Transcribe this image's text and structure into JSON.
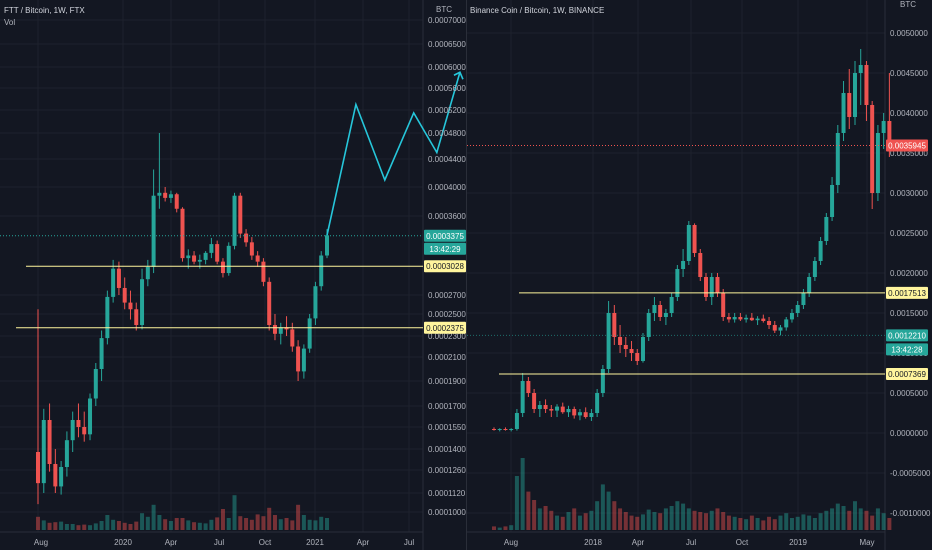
{
  "chart_data": [
    {
      "type": "candlestick",
      "title": "FTT / Bitcoin, 1W, FTX",
      "volume_label": "Vol",
      "currency": "BTC",
      "y_ticks": [
        0.0001,
        0.000112,
        0.000126,
        0.00014,
        0.000155,
        0.00017,
        0.00019,
        0.00021,
        0.00023,
        0.00025,
        0.00027,
        0.00036,
        0.0004,
        0.00044,
        0.00048,
        0.00052,
        0.00056,
        0.0006,
        0.00065,
        0.0007
      ],
      "y_tick_labels": [
        "0.0001000",
        "0.0001120",
        "0.0001260",
        "0.0001400",
        "0.0001550",
        "0.0001700",
        "0.0001900",
        "0.0002100",
        "0.0002300",
        "0.0002500",
        "0.0002700",
        "0.0003600",
        "0.0004000",
        "0.0004400",
        "0.0004800",
        "0.0005200",
        "0.0005600",
        "0.0006000",
        "0.0006500",
        "0.0007000"
      ],
      "x_labels": [
        "Aug",
        "2020",
        "Apr",
        "Jul",
        "Oct",
        "2021",
        "Apr",
        "Jul"
      ],
      "last_price": "0.0003375",
      "countdown": "13:42:29",
      "horizontal_levels": [
        "0.0003028",
        "0.0002375"
      ],
      "candles": [
        [
          0.000138,
          0.000255,
          0.000105,
          0.000118
        ],
        [
          0.000118,
          0.000168,
          0.000112,
          0.00016
        ],
        [
          0.00016,
          0.000172,
          0.000125,
          0.00013
        ],
        [
          0.00013,
          0.00014,
          0.000112,
          0.000116
        ],
        [
          0.000116,
          0.000132,
          0.000111,
          0.000128
        ],
        [
          0.000128,
          0.000152,
          0.000122,
          0.000146
        ],
        [
          0.000146,
          0.000166,
          0.000138,
          0.00016
        ],
        [
          0.00016,
          0.000172,
          0.000148,
          0.000155
        ],
        [
          0.000155,
          0.000166,
          0.000145,
          0.00015
        ],
        [
          0.00015,
          0.00018,
          0.000146,
          0.000176
        ],
        [
          0.000176,
          0.000205,
          0.00017,
          0.0002
        ],
        [
          0.0002,
          0.000235,
          0.00019,
          0.000228
        ],
        [
          0.000228,
          0.000275,
          0.000222,
          0.000268
        ],
        [
          0.000268,
          0.00031,
          0.000262,
          0.0003
        ],
        [
          0.0003,
          0.000308,
          0.00027,
          0.000278
        ],
        [
          0.000278,
          0.00029,
          0.000255,
          0.000262
        ],
        [
          0.000262,
          0.000275,
          0.000245,
          0.000255
        ],
        [
          0.000255,
          0.000262,
          0.000235,
          0.00024
        ],
        [
          0.00024,
          0.0003,
          0.000236,
          0.000288
        ],
        [
          0.000288,
          0.00031,
          0.00028,
          0.000302
        ],
        [
          0.000302,
          0.000425,
          0.000295,
          0.000388
        ],
        [
          0.000388,
          0.00048,
          0.00037,
          0.000392
        ],
        [
          0.000392,
          0.0004,
          0.00038,
          0.000385
        ],
        [
          0.000385,
          0.000395,
          0.000378,
          0.00039
        ],
        [
          0.00039,
          0.000392,
          0.000365,
          0.00037
        ],
        [
          0.00037,
          0.000372,
          0.000308,
          0.000312
        ],
        [
          0.000312,
          0.000322,
          0.0003,
          0.000315
        ],
        [
          0.000315,
          0.00032,
          0.000305,
          0.000308
        ],
        [
          0.000308,
          0.000316,
          0.0003,
          0.00031
        ],
        [
          0.00031,
          0.00032,
          0.000305,
          0.000318
        ],
        [
          0.000318,
          0.000335,
          0.000312,
          0.000328
        ],
        [
          0.000328,
          0.000332,
          0.000305,
          0.000308
        ],
        [
          0.000308,
          0.000312,
          0.00029,
          0.000295
        ],
        [
          0.000295,
          0.00033,
          0.000292,
          0.000326
        ],
        [
          0.000326,
          0.000392,
          0.000322,
          0.000388
        ],
        [
          0.000388,
          0.000392,
          0.000335,
          0.00034
        ],
        [
          0.00034,
          0.000345,
          0.000325,
          0.00033
        ],
        [
          0.00033,
          0.000336,
          0.00031,
          0.000315
        ],
        [
          0.000315,
          0.00032,
          0.000302,
          0.000308
        ],
        [
          0.000308,
          0.000312,
          0.00028,
          0.000285
        ],
        [
          0.000285,
          0.00029,
          0.000235,
          0.00024
        ],
        [
          0.00024,
          0.00025,
          0.000226,
          0.000232
        ],
        [
          0.000232,
          0.000242,
          0.000222,
          0.000238
        ],
        [
          0.000238,
          0.000248,
          0.00023,
          0.000236
        ],
        [
          0.000236,
          0.000242,
          0.000215,
          0.00022
        ],
        [
          0.00022,
          0.000226,
          0.00019,
          0.000198
        ],
        [
          0.000198,
          0.000222,
          0.000192,
          0.000218
        ],
        [
          0.000218,
          0.00025,
          0.000214,
          0.000246
        ],
        [
          0.000246,
          0.000285,
          0.00024,
          0.00028
        ],
        [
          0.00028,
          0.00032,
          0.000275,
          0.000315
        ],
        [
          0.000315,
          0.000345,
          0.000312,
          0.000338
        ]
      ],
      "volumes": [
        2.2,
        1.6,
        1.2,
        1.3,
        1.4,
        1.0,
        1.0,
        0.8,
        0.9,
        0.8,
        1.1,
        1.5,
        2.5,
        1.7,
        1.5,
        1.2,
        1.0,
        1.4,
        2.8,
        2.2,
        4.2,
        2.5,
        1.8,
        1.5,
        2.0,
        2.0,
        1.6,
        1.3,
        1.2,
        1.1,
        1.7,
        2.1,
        3.5,
        2.0,
        5.8,
        2.3,
        2.0,
        1.7,
        2.6,
        2.3,
        3.7,
        2.5,
        1.8,
        2.0,
        1.6,
        4.2,
        2.5,
        1.7,
        1.6,
        2.2,
        2.0
      ],
      "projection": [
        [
          50,
          0.000338
        ],
        [
          55,
          0.00053
        ],
        [
          60,
          0.00041
        ],
        [
          65,
          0.000515
        ],
        [
          69,
          0.00045
        ],
        [
          73,
          0.00059
        ]
      ]
    },
    {
      "type": "candlestick",
      "title": "Binance Coin / Bitcoin, 1W, BINANCE",
      "currency": "BTC",
      "y_ticks": [
        -0.001,
        -0.0005,
        0,
        0.0005,
        0.001,
        0.0015,
        0.002,
        0.0025,
        0.003,
        0.0035,
        0.004,
        0.0045,
        0.005
      ],
      "y_tick_labels": [
        "-0.0010000",
        "-0.0005000",
        "0.0000000",
        "0.0005000",
        "0.0010000",
        "0.0015000",
        "0.0020000",
        "0.0025000",
        "0.0030000",
        "0.0035000",
        "0.0040000",
        "0.0045000",
        "0.0050000"
      ],
      "x_labels": [
        "Aug",
        "2018",
        "Apr",
        "Jul",
        "Oct",
        "2019",
        "May"
      ],
      "last_price": "0.0035945",
      "sub_price": "0.0012210",
      "countdown": "13:42:28",
      "horizontal_levels": [
        "0.0017513",
        "0.0007369"
      ],
      "candles": [
        [
          5e-05,
          7e-05,
          3e-05,
          4e-05
        ],
        [
          4e-05,
          6e-05,
          2e-05,
          5e-05
        ],
        [
          5e-05,
          7e-05,
          3e-05,
          4e-05
        ],
        [
          4e-05,
          6e-05,
          2e-05,
          5e-05
        ],
        [
          5e-05,
          0.0003,
          3e-05,
          0.00025
        ],
        [
          0.00025,
          0.00075,
          0.0002,
          0.00065
        ],
        [
          0.00065,
          0.0007,
          0.00045,
          0.0005
        ],
        [
          0.0005,
          0.00055,
          0.00025,
          0.0003
        ],
        [
          0.0003,
          0.0004,
          0.0002,
          0.00035
        ],
        [
          0.00035,
          0.00042,
          0.00025,
          0.0003
        ],
        [
          0.0003,
          0.00035,
          0.0002,
          0.00028
        ],
        [
          0.00028,
          0.00036,
          0.0002,
          0.00033
        ],
        [
          0.00033,
          0.00038,
          0.00024,
          0.00026
        ],
        [
          0.00026,
          0.00034,
          0.0002,
          0.0003
        ],
        [
          0.0003,
          0.00033,
          0.00018,
          0.00022
        ],
        [
          0.00022,
          0.0003,
          0.00016,
          0.00026
        ],
        [
          0.00026,
          0.00032,
          0.00018,
          0.0002
        ],
        [
          0.0002,
          0.0003,
          0.00015,
          0.00025
        ],
        [
          0.00025,
          0.00055,
          0.0002,
          0.0005
        ],
        [
          0.0005,
          0.00085,
          0.00045,
          0.0008
        ],
        [
          0.0008,
          0.00165,
          0.00075,
          0.0015
        ],
        [
          0.0015,
          0.0016,
          0.0011,
          0.0012
        ],
        [
          0.0012,
          0.00135,
          0.001,
          0.0011
        ],
        [
          0.0011,
          0.0012,
          0.00095,
          0.00105
        ],
        [
          0.00105,
          0.00115,
          0.0009,
          0.001
        ],
        [
          0.001,
          0.00105,
          0.00085,
          0.0009
        ],
        [
          0.0009,
          0.00125,
          0.00088,
          0.0012
        ],
        [
          0.0012,
          0.00155,
          0.00115,
          0.0015
        ],
        [
          0.0015,
          0.0017,
          0.0014,
          0.0016
        ],
        [
          0.0016,
          0.00165,
          0.0014,
          0.00145
        ],
        [
          0.00145,
          0.00155,
          0.00135,
          0.0015
        ],
        [
          0.0015,
          0.00175,
          0.00145,
          0.0017
        ],
        [
          0.0017,
          0.0021,
          0.00165,
          0.00205
        ],
        [
          0.00205,
          0.0023,
          0.00195,
          0.00215
        ],
        [
          0.00215,
          0.00265,
          0.0021,
          0.0026
        ],
        [
          0.0026,
          0.00262,
          0.0022,
          0.00225
        ],
        [
          0.00225,
          0.0023,
          0.0019,
          0.00195
        ],
        [
          0.00195,
          0.002,
          0.00165,
          0.0017
        ],
        [
          0.0017,
          0.002,
          0.0016,
          0.00195
        ],
        [
          0.00195,
          0.002,
          0.0017,
          0.00175
        ],
        [
          0.00175,
          0.0018,
          0.0014,
          0.00145
        ],
        [
          0.00145,
          0.0015,
          0.00138,
          0.00142
        ],
        [
          0.00142,
          0.0015,
          0.00138,
          0.00145
        ],
        [
          0.00145,
          0.0015,
          0.0014,
          0.00142
        ],
        [
          0.00142,
          0.00148,
          0.00138,
          0.00144
        ],
        [
          0.00144,
          0.0015,
          0.0014,
          0.00141
        ],
        [
          0.00141,
          0.00146,
          0.00135,
          0.00143
        ],
        [
          0.00143,
          0.00148,
          0.00138,
          0.0014
        ],
        [
          0.0014,
          0.00145,
          0.0013,
          0.00135
        ],
        [
          0.00135,
          0.0014,
          0.00125,
          0.00128
        ],
        [
          0.00128,
          0.00135,
          0.00122,
          0.00132
        ],
        [
          0.00132,
          0.00145,
          0.00128,
          0.00142
        ],
        [
          0.00142,
          0.00155,
          0.00138,
          0.0015
        ],
        [
          0.0015,
          0.00165,
          0.00145,
          0.0016
        ],
        [
          0.0016,
          0.0018,
          0.00155,
          0.00175
        ],
        [
          0.00175,
          0.002,
          0.0017,
          0.00195
        ],
        [
          0.00195,
          0.0022,
          0.0019,
          0.00215
        ],
        [
          0.00215,
          0.00245,
          0.0021,
          0.0024
        ],
        [
          0.0024,
          0.00275,
          0.00235,
          0.0027
        ],
        [
          0.0027,
          0.0032,
          0.00265,
          0.0031
        ],
        [
          0.0031,
          0.00385,
          0.003,
          0.00375
        ],
        [
          0.00375,
          0.0044,
          0.00365,
          0.00425
        ],
        [
          0.00425,
          0.00455,
          0.0038,
          0.00395
        ],
        [
          0.00395,
          0.00465,
          0.00385,
          0.0045
        ],
        [
          0.0045,
          0.0048,
          0.0041,
          0.0046
        ],
        [
          0.0046,
          0.00465,
          0.0039,
          0.0041
        ],
        [
          0.0041,
          0.00415,
          0.0028,
          0.003
        ],
        [
          0.003,
          0.00385,
          0.0029,
          0.00375
        ],
        [
          0.00375,
          0.004,
          0.00355,
          0.0039
        ],
        [
          0.0039,
          0.0045,
          0.00345,
          0.00359
        ]
      ],
      "volumes": [
        0.3,
        0.2,
        0.3,
        0.4,
        4.5,
        6.0,
        3.2,
        2.5,
        1.8,
        2.0,
        1.6,
        1.2,
        1.1,
        1.5,
        1.8,
        1.2,
        1.4,
        1.6,
        2.4,
        3.8,
        3.2,
        2.4,
        1.8,
        1.5,
        1.2,
        1.1,
        1.3,
        1.7,
        1.5,
        1.4,
        1.8,
        2.0,
        2.4,
        2.2,
        1.8,
        1.6,
        1.5,
        1.4,
        1.6,
        1.8,
        1.5,
        1.2,
        1.1,
        1.0,
        0.9,
        1.2,
        1.0,
        0.8,
        1.1,
        0.9,
        1.2,
        1.4,
        1.0,
        1.1,
        1.3,
        1.2,
        1.0,
        1.4,
        1.6,
        1.8,
        2.2,
        2.0,
        1.6,
        2.4,
        1.8,
        1.6,
        1.2,
        1.8,
        1.4,
        1.0
      ]
    }
  ]
}
